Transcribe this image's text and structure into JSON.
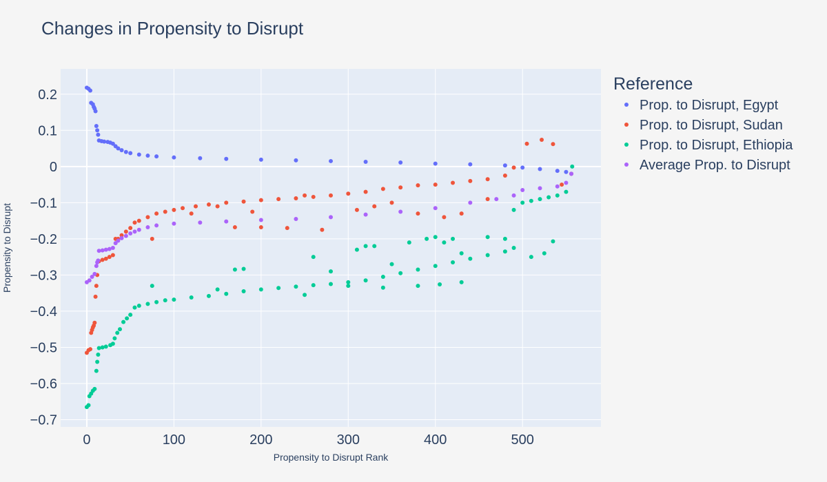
{
  "chart_data": {
    "type": "scatter",
    "title": "Changes in Propensity to Disrupt",
    "xlabel": "Propensity to Disrupt Rank",
    "ylabel": "Propensity to Disrupt",
    "xlim": [
      -30,
      590
    ],
    "ylim": [
      -0.72,
      0.27
    ],
    "x_ticks": [
      0,
      100,
      200,
      300,
      400,
      500
    ],
    "y_ticks": [
      0.2,
      0.1,
      0,
      -0.1,
      -0.2,
      -0.3,
      -0.4,
      -0.5,
      -0.6,
      -0.7
    ],
    "x_tick_labels": [
      "0",
      "100",
      "200",
      "300",
      "400",
      "500"
    ],
    "y_tick_labels": [
      "0.2",
      "0.1",
      "0",
      "−0.1",
      "−0.2",
      "−0.3",
      "−0.4",
      "−0.5",
      "−0.6",
      "−0.7"
    ],
    "grid": true,
    "legend_position": "right",
    "legend_title": "Reference",
    "series": [
      {
        "name": "Prop. to Disrupt, Egypt",
        "color": "#636efa",
        "points": [
          [
            0,
            0.218
          ],
          [
            2,
            0.215
          ],
          [
            4,
            0.21
          ],
          [
            5,
            0.176
          ],
          [
            7,
            0.172
          ],
          [
            8,
            0.165
          ],
          [
            9,
            0.16
          ],
          [
            10,
            0.153
          ],
          [
            11,
            0.112
          ],
          [
            12,
            0.1
          ],
          [
            13,
            0.088
          ],
          [
            14,
            0.072
          ],
          [
            17,
            0.07
          ],
          [
            20,
            0.069
          ],
          [
            24,
            0.068
          ],
          [
            27,
            0.066
          ],
          [
            30,
            0.063
          ],
          [
            33,
            0.056
          ],
          [
            36,
            0.05
          ],
          [
            40,
            0.045
          ],
          [
            45,
            0.04
          ],
          [
            50,
            0.037
          ],
          [
            60,
            0.033
          ],
          [
            70,
            0.03
          ],
          [
            80,
            0.028
          ],
          [
            100,
            0.025
          ],
          [
            130,
            0.023
          ],
          [
            160,
            0.021
          ],
          [
            200,
            0.019
          ],
          [
            240,
            0.017
          ],
          [
            280,
            0.015
          ],
          [
            320,
            0.013
          ],
          [
            360,
            0.011
          ],
          [
            400,
            0.008
          ],
          [
            440,
            0.006
          ],
          [
            480,
            0.003
          ],
          [
            500,
            -0.003
          ],
          [
            520,
            -0.007
          ],
          [
            540,
            -0.012
          ],
          [
            550,
            -0.015
          ],
          [
            556,
            -0.02
          ]
        ]
      },
      {
        "name": "Prop. to Disrupt, Sudan",
        "color": "#ef553b",
        "points": [
          [
            0,
            -0.515
          ],
          [
            2,
            -0.508
          ],
          [
            4,
            -0.505
          ],
          [
            5,
            -0.46
          ],
          [
            6,
            -0.452
          ],
          [
            7,
            -0.445
          ],
          [
            8,
            -0.44
          ],
          [
            9,
            -0.432
          ],
          [
            10,
            -0.36
          ],
          [
            11,
            -0.33
          ],
          [
            12,
            -0.3
          ],
          [
            14,
            -0.262
          ],
          [
            18,
            -0.258
          ],
          [
            22,
            -0.255
          ],
          [
            26,
            -0.25
          ],
          [
            30,
            -0.245
          ],
          [
            33,
            -0.2
          ],
          [
            36,
            -0.2
          ],
          [
            40,
            -0.19
          ],
          [
            45,
            -0.18
          ],
          [
            50,
            -0.17
          ],
          [
            55,
            -0.155
          ],
          [
            60,
            -0.15
          ],
          [
            70,
            -0.14
          ],
          [
            80,
            -0.13
          ],
          [
            90,
            -0.125
          ],
          [
            100,
            -0.12
          ],
          [
            110,
            -0.115
          ],
          [
            125,
            -0.11
          ],
          [
            140,
            -0.105
          ],
          [
            160,
            -0.1
          ],
          [
            180,
            -0.097
          ],
          [
            200,
            -0.093
          ],
          [
            220,
            -0.09
          ],
          [
            240,
            -0.088
          ],
          [
            260,
            -0.084
          ],
          [
            280,
            -0.08
          ],
          [
            300,
            -0.075
          ],
          [
            320,
            -0.07
          ],
          [
            340,
            -0.062
          ],
          [
            360,
            -0.058
          ],
          [
            380,
            -0.052
          ],
          [
            400,
            -0.05
          ],
          [
            420,
            -0.045
          ],
          [
            440,
            -0.04
          ],
          [
            460,
            -0.035
          ],
          [
            480,
            -0.025
          ],
          [
            490,
            -0.003
          ],
          [
            505,
            0.063
          ],
          [
            522,
            0.074
          ],
          [
            535,
            0.062
          ],
          [
            545,
            -0.05
          ],
          [
            556,
            -0.02
          ],
          [
            75,
            -0.2
          ],
          [
            170,
            -0.168
          ],
          [
            200,
            -0.168
          ],
          [
            230,
            -0.17
          ],
          [
            270,
            -0.175
          ],
          [
            150,
            -0.11
          ],
          [
            250,
            -0.08
          ],
          [
            310,
            -0.12
          ],
          [
            350,
            -0.1
          ],
          [
            380,
            -0.13
          ],
          [
            410,
            -0.14
          ],
          [
            430,
            -0.13
          ],
          [
            460,
            -0.09
          ],
          [
            330,
            -0.11
          ],
          [
            190,
            -0.125
          ],
          [
            120,
            -0.13
          ]
        ]
      },
      {
        "name": "Prop. to Disrupt, Ethiopia",
        "color": "#00cc96",
        "points": [
          [
            0,
            -0.665
          ],
          [
            2,
            -0.66
          ],
          [
            3,
            -0.635
          ],
          [
            5,
            -0.628
          ],
          [
            7,
            -0.62
          ],
          [
            9,
            -0.615
          ],
          [
            11,
            -0.565
          ],
          [
            12,
            -0.54
          ],
          [
            13,
            -0.52
          ],
          [
            14,
            -0.502
          ],
          [
            18,
            -0.5
          ],
          [
            22,
            -0.498
          ],
          [
            27,
            -0.494
          ],
          [
            30,
            -0.49
          ],
          [
            32,
            -0.475
          ],
          [
            35,
            -0.46
          ],
          [
            38,
            -0.45
          ],
          [
            42,
            -0.43
          ],
          [
            46,
            -0.42
          ],
          [
            50,
            -0.41
          ],
          [
            55,
            -0.39
          ],
          [
            60,
            -0.385
          ],
          [
            70,
            -0.38
          ],
          [
            80,
            -0.375
          ],
          [
            90,
            -0.37
          ],
          [
            100,
            -0.368
          ],
          [
            120,
            -0.362
          ],
          [
            140,
            -0.358
          ],
          [
            160,
            -0.352
          ],
          [
            180,
            -0.345
          ],
          [
            200,
            -0.34
          ],
          [
            220,
            -0.336
          ],
          [
            240,
            -0.332
          ],
          [
            260,
            -0.328
          ],
          [
            280,
            -0.325
          ],
          [
            300,
            -0.32
          ],
          [
            320,
            -0.315
          ],
          [
            340,
            -0.305
          ],
          [
            360,
            -0.295
          ],
          [
            380,
            -0.285
          ],
          [
            400,
            -0.275
          ],
          [
            420,
            -0.265
          ],
          [
            440,
            -0.255
          ],
          [
            460,
            -0.245
          ],
          [
            480,
            -0.235
          ],
          [
            490,
            -0.12
          ],
          [
            500,
            -0.1
          ],
          [
            510,
            -0.095
          ],
          [
            520,
            -0.09
          ],
          [
            530,
            -0.085
          ],
          [
            540,
            -0.08
          ],
          [
            550,
            -0.07
          ],
          [
            557,
            -0.0
          ],
          [
            75,
            -0.33
          ],
          [
            170,
            -0.285
          ],
          [
            180,
            -0.283
          ],
          [
            260,
            -0.25
          ],
          [
            280,
            -0.29
          ],
          [
            310,
            -0.23
          ],
          [
            320,
            -0.22
          ],
          [
            330,
            -0.22
          ],
          [
            350,
            -0.27
          ],
          [
            370,
            -0.21
          ],
          [
            390,
            -0.2
          ],
          [
            400,
            -0.195
          ],
          [
            410,
            -0.21
          ],
          [
            420,
            -0.2
          ],
          [
            430,
            -0.24
          ],
          [
            460,
            -0.195
          ],
          [
            480,
            -0.2
          ],
          [
            490,
            -0.225
          ],
          [
            510,
            -0.25
          ],
          [
            525,
            -0.24
          ],
          [
            535,
            -0.207
          ],
          [
            405,
            -0.326
          ],
          [
            380,
            -0.33
          ],
          [
            340,
            -0.335
          ],
          [
            300,
            -0.33
          ],
          [
            430,
            -0.32
          ],
          [
            150,
            -0.34
          ],
          [
            250,
            -0.355
          ]
        ]
      },
      {
        "name": "Average Prop. to Disrupt",
        "color": "#ab63fa",
        "points": [
          [
            0,
            -0.32
          ],
          [
            3,
            -0.315
          ],
          [
            6,
            -0.305
          ],
          [
            9,
            -0.297
          ],
          [
            11,
            -0.275
          ],
          [
            12,
            -0.265
          ],
          [
            13,
            -0.26
          ],
          [
            14,
            -0.233
          ],
          [
            18,
            -0.232
          ],
          [
            22,
            -0.23
          ],
          [
            26,
            -0.228
          ],
          [
            30,
            -0.225
          ],
          [
            33,
            -0.212
          ],
          [
            36,
            -0.205
          ],
          [
            40,
            -0.198
          ],
          [
            45,
            -0.192
          ],
          [
            50,
            -0.185
          ],
          [
            55,
            -0.18
          ],
          [
            60,
            -0.175
          ],
          [
            70,
            -0.168
          ],
          [
            80,
            -0.163
          ],
          [
            100,
            -0.158
          ],
          [
            130,
            -0.155
          ],
          [
            160,
            -0.152
          ],
          [
            200,
            -0.148
          ],
          [
            240,
            -0.145
          ],
          [
            280,
            -0.14
          ],
          [
            320,
            -0.133
          ],
          [
            360,
            -0.125
          ],
          [
            400,
            -0.115
          ],
          [
            440,
            -0.1
          ],
          [
            470,
            -0.09
          ],
          [
            490,
            -0.08
          ],
          [
            500,
            -0.065
          ],
          [
            520,
            -0.06
          ],
          [
            540,
            -0.055
          ],
          [
            550,
            -0.045
          ],
          [
            556,
            -0.02
          ]
        ]
      }
    ]
  }
}
